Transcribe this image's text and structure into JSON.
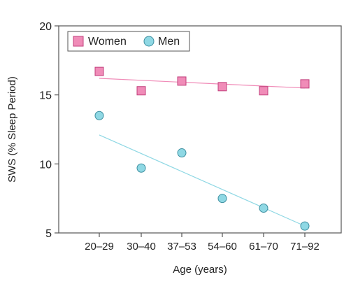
{
  "chart_data": {
    "type": "scatter",
    "title": "",
    "xlabel": "Age (years)",
    "ylabel": "SWS (% Sleep Period)",
    "categories": [
      "20–29",
      "30–40",
      "37–53",
      "54–60",
      "61–70",
      "71–92"
    ],
    "ylim": [
      5,
      20
    ],
    "yticks": [
      5,
      10,
      15,
      20
    ],
    "grid": false,
    "legend_position": "top-left",
    "series": [
      {
        "name": "Women",
        "marker": "square",
        "color": "#f08cb8",
        "edge_color": "#c2407c",
        "values": [
          16.7,
          15.3,
          16.0,
          15.6,
          15.3,
          15.8
        ],
        "trend": [
          16.2,
          15.5
        ]
      },
      {
        "name": "Men",
        "marker": "circle",
        "color": "#8fd8e4",
        "edge_color": "#3d8fa0",
        "values": [
          13.5,
          9.7,
          10.8,
          7.5,
          6.8,
          5.5
        ],
        "trend": [
          12.1,
          5.5
        ]
      }
    ]
  }
}
